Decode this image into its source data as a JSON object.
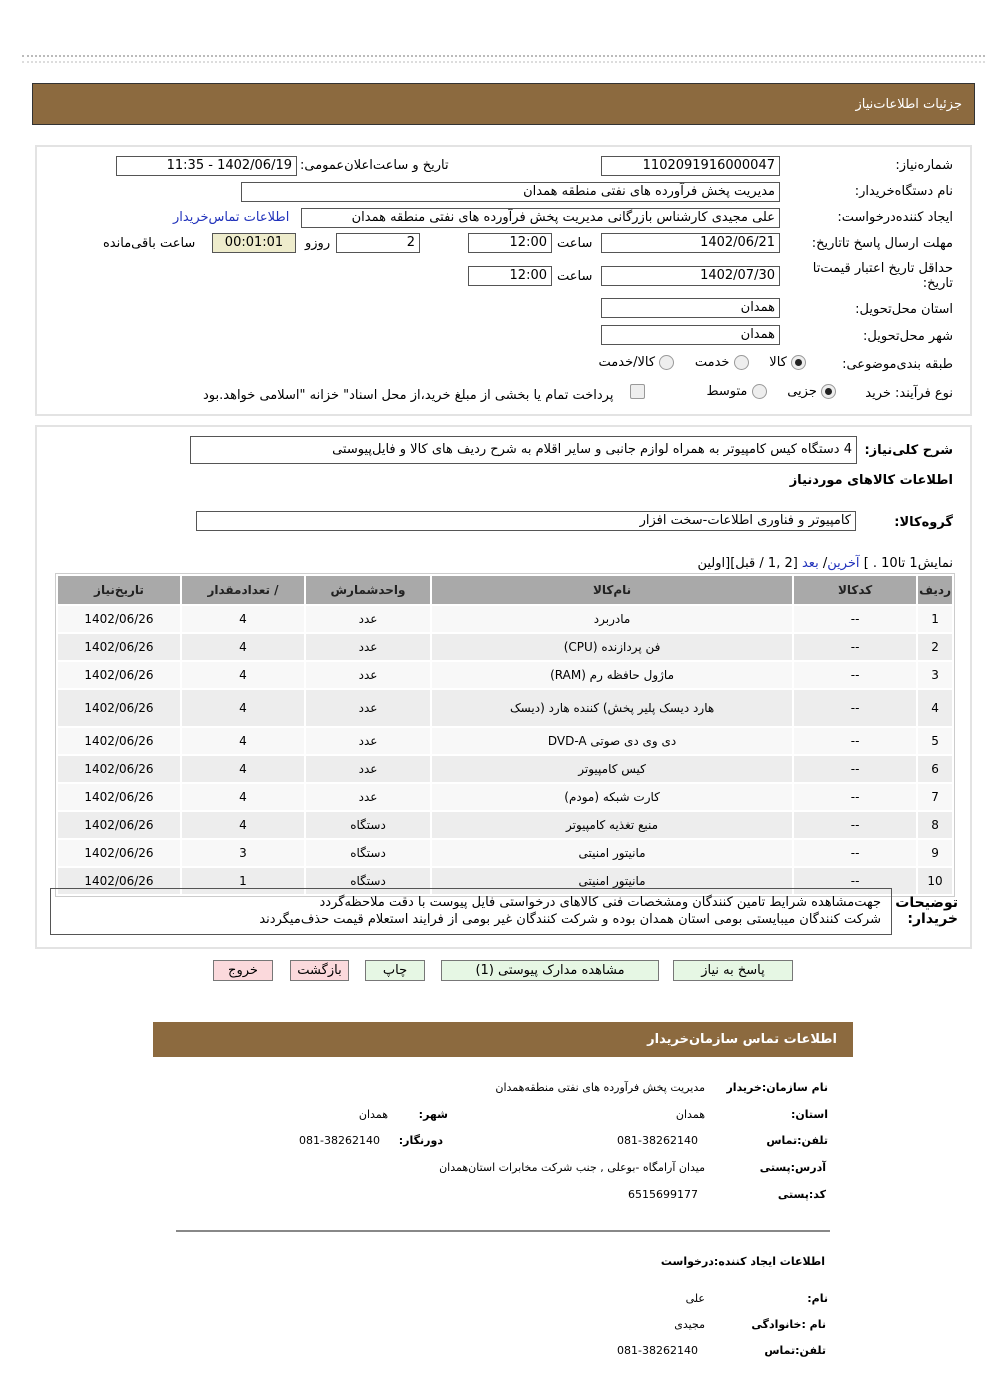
{
  "header": {
    "title": "جزئیات  اطلاعات‌نیاز"
  },
  "form": {
    "need_number_label": "شماره‌نیاز:",
    "need_number": "1102091916000047",
    "announce_label": "تاریخ و ساعت‌اعلان‌عمومی:",
    "announce_value": "1402/06/19 - 11:35",
    "buyer_label": "نام دستگاه‌خریدار:",
    "buyer_value": "مدیریت پخش فرآورده های نفتی منطقه همدان",
    "creator_label": "ایجاد کننده‌درخواست:",
    "creator_value": "علی مجیدی کارشناس بازرگانی مدیریت پخش فرآورده های نفتی منطقه همدان",
    "contact_link": "اطلاعات تماس‌خریدار",
    "deadline_label": "مهلت ارسال پاسخ تا‌تاریخ:",
    "deadline_date": "1402/06/21",
    "time_label": "ساعت",
    "deadline_time": "12:00",
    "days": "2",
    "days_label": "روزو",
    "remaining": "00:01:01",
    "remaining_label": "ساعت باقی‌مانده",
    "validity_label": "حداقل تاریخ اعتبار قیمت‌تا تاریخ:",
    "validity_date": "1402/07/30",
    "validity_time": "12:00",
    "province_label": "استان محل‌تحویل:",
    "province": "همدان",
    "city_label": "شهر محل‌تحویل:",
    "city": "همدان",
    "category_label": "طبقه بندی‌موضوعی:",
    "category_options": [
      "کالا",
      "خدمت",
      "کالا/خدمت"
    ],
    "category_selected": "کالا",
    "process_label": "نوع فرآیند: خرید",
    "process_options": [
      "جزیی",
      "متوسط"
    ],
    "process_selected": "جزیی",
    "treasury_text": "پرداخت تمام یا بخشی از مبلغ خرید،از محل اسناد\" خزانه \"اسلامی خواهد.بود"
  },
  "summary": {
    "desc_label": "شرح کلی‌نیاز:",
    "desc_value": "4 دستگاه کیس کامپیوتر به همراه لوازم جانبی و سایر اقلام به شرح ردیف های کالا و فایل‌پیوستی",
    "goods_title": "اطلاعات کالاهای موردنیاز",
    "group_label": "گروه‌کالا:",
    "group_value": "کامپیوتر و فناوری اطلاعات-سخت افزار",
    "pager_text": "نمایش1 تا10 . ]",
    "pager_last": "آخرین",
    "pager_next": "بعد",
    "pager_pages": "[2 ,1 / قبل][اولین"
  },
  "table": {
    "headers": [
      "ردیف",
      "کدکالا",
      "نام‌کالا",
      "واحدشمارش",
      "/ تعدادمقدار",
      "تاریخ‌نیاز"
    ],
    "rows": [
      [
        "1",
        "--",
        "مادربرد",
        "عدد",
        "4",
        "1402/06/26"
      ],
      [
        "2",
        "--",
        "فن پردازنده (CPU)",
        "عدد",
        "4",
        "1402/06/26"
      ],
      [
        "3",
        "--",
        "ماژول حافظه رم (RAM)",
        "عدد",
        "4",
        "1402/06/26"
      ],
      [
        "4",
        "--",
        "هارد دیسک پلیر پخش) کننده هارد (دیسک",
        "عدد",
        "4",
        "1402/06/26"
      ],
      [
        "5",
        "--",
        "دی وی دی صوتی DVD-A",
        "عدد",
        "4",
        "1402/06/26"
      ],
      [
        "6",
        "--",
        "کیس کامپیوتر",
        "عدد",
        "4",
        "1402/06/26"
      ],
      [
        "7",
        "--",
        "کارت شبکه (مودم)",
        "عدد",
        "4",
        "1402/06/26"
      ],
      [
        "8",
        "--",
        "منبع تغذیه کامپیوتر",
        "دستگاه",
        "4",
        "1402/06/26"
      ],
      [
        "9",
        "--",
        "مانیتور امنیتی",
        "دستگاه",
        "3",
        "1402/06/26"
      ],
      [
        "10",
        "--",
        "مانیتور امنیتی",
        "دستگاه",
        "1",
        "1402/06/26"
      ]
    ]
  },
  "notes": {
    "label": "توضیحات خریدار:",
    "line1": "جهت‌مشاهده شرایط تامین کنندگان ومشخصات فنی کالاهای درخواستی فایل پیوست با دقت ملاحظه‌گردد",
    "line2": "شرکت کنندگان میبایستی بومی استان همدان بوده و شرکت کنندگان غیر بومی از فرایند استعلام قیمت حذف‌میگردند"
  },
  "buttons": {
    "reply": "پاسخ به نیاز",
    "attachments": "مشاهده مدارک پیوستی (1)",
    "print": "چاپ",
    "back": "بازگشت",
    "exit": "خروج"
  },
  "contact": {
    "title": "اطلاعات  تماس سازمان‌خریدار",
    "org_label": "نام سازمان:خریدار",
    "org": "مدیریت پخش فرآورده های نفتی منطقه‌همدان",
    "province_label": "استان:",
    "province": "همدان",
    "city_label": "شهر:",
    "city": "همدان",
    "phone_label": "تلفن:تماس",
    "phone": "081-38262140",
    "fax_label": "دورنگار:",
    "fax": "081-38262140",
    "address_label": "آدرس:پستی",
    "address": "میدان آرامگاه -بوعلی , جنب شرکت مخابرات استان‌همدان",
    "postal_label": "کد:پستی",
    "postal": "6515699177",
    "creator_title": "اطلاعات  ایجاد کننده:درخواست",
    "name_label": "نام:",
    "name": "علی",
    "family_label": "نام :خانوادگی",
    "family": "مجیدی",
    "cphone_label": "تلفن:تماس",
    "cphone": "081-38262140"
  },
  "colors": {
    "brand_bar": "#8c6a3f",
    "button_green": "#e6f7e4",
    "button_red": "#fbd9dc",
    "remaining_bg": "#eeeccc"
  }
}
